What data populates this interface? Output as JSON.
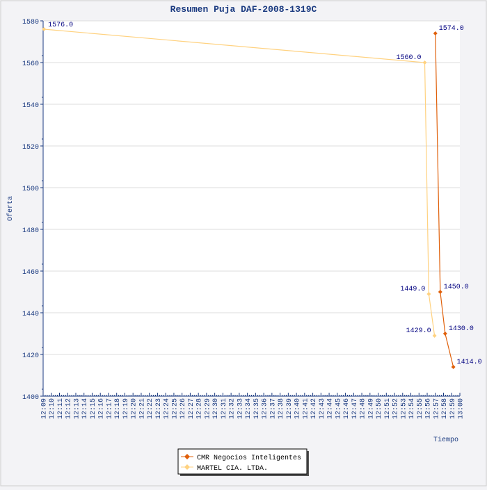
{
  "chart_data": {
    "type": "line",
    "title": "Resumen Puja DAF-2008-1319C",
    "xlabel": "Tiempo",
    "ylabel": "Oferta",
    "ylim": [
      1400,
      1580
    ],
    "yticks": [
      1400,
      1420,
      1440,
      1460,
      1480,
      1500,
      1520,
      1540,
      1560,
      1580
    ],
    "xlim_minutes": [
      729,
      780
    ],
    "xtick_labels": [
      "12:09",
      "12:10",
      "12:11",
      "12:12",
      "12:13",
      "12:14",
      "12:15",
      "12:16",
      "12:17",
      "12:18",
      "12:19",
      "12:20",
      "12:21",
      "12:22",
      "12:23",
      "12:24",
      "12:25",
      "12:26",
      "12:27",
      "12:28",
      "12:29",
      "12:30",
      "12:31",
      "12:32",
      "12:33",
      "12:34",
      "12:35",
      "12:36",
      "12:37",
      "12:38",
      "12:39",
      "12:40",
      "12:41",
      "12:42",
      "12:43",
      "12:44",
      "12:45",
      "12:46",
      "12:47",
      "12:48",
      "12:49",
      "12:50",
      "12:51",
      "12:52",
      "12:53",
      "12:54",
      "12:55",
      "12:56",
      "12:57",
      "12:58",
      "12:59",
      "13:00"
    ],
    "grid": true,
    "legend_position": "bottom-center",
    "series": [
      {
        "name": "CMR Negocios Inteligentes",
        "color": "#e0600a",
        "x_minutes": [
          777.0,
          777.6,
          778.2,
          779.2
        ],
        "values": [
          1574,
          1450,
          1430,
          1414
        ],
        "labels": [
          "1574.0",
          "1450.0",
          "1430.0",
          "1414.0"
        ]
      },
      {
        "name": "MARTEL CIA. LTDA.",
        "color": "#ffd280",
        "x_minutes": [
          729.1,
          775.7,
          776.2,
          776.9
        ],
        "values": [
          1576,
          1560,
          1449,
          1429
        ],
        "labels": [
          "1576.0",
          "1560.0",
          "1449.0",
          "1429.0"
        ]
      }
    ]
  }
}
